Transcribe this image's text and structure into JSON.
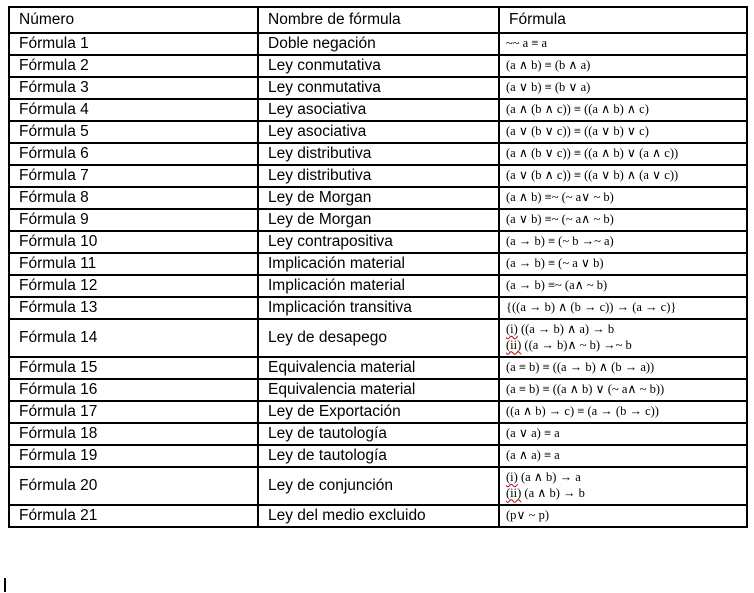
{
  "colors": {
    "background": "#ffffff",
    "border": "#000000",
    "text": "#000000",
    "spellcheck_underline": "#c00000"
  },
  "table": {
    "headers": [
      "Número",
      "Nombre de fórmula",
      "Fórmula"
    ],
    "rows": [
      {
        "numero": "Fórmula 1",
        "nombre": "Doble negación",
        "lines": [
          {
            "text": "~~ a ≡ a"
          }
        ]
      },
      {
        "numero": "Fórmula 2",
        "nombre": "Ley conmutativa",
        "lines": [
          {
            "text": "(a ∧ b) ≡ (b ∧ a)"
          }
        ]
      },
      {
        "numero": "Fórmula 3",
        "nombre": "Ley conmutativa",
        "lines": [
          {
            "text": "(a ∨ b) ≡ (b ∨ a)"
          }
        ]
      },
      {
        "numero": "Fórmula 4",
        "nombre": "Ley asociativa",
        "lines": [
          {
            "text": "(a ∧ (b ∧ c)) ≡ ((a ∧ b) ∧ c)"
          }
        ]
      },
      {
        "numero": "Fórmula 5",
        "nombre": "Ley asociativa",
        "lines": [
          {
            "text": "(a ∨ (b ∨ c)) ≡ ((a ∨ b) ∨ c)"
          }
        ]
      },
      {
        "numero": "Fórmula 6",
        "nombre": "Ley distributiva",
        "lines": [
          {
            "text": "(a ∧ (b ∨ c)) ≡ ((a ∧ b) ∨ (a ∧ c))"
          }
        ]
      },
      {
        "numero": "Fórmula 7",
        "nombre": "Ley distributiva",
        "lines": [
          {
            "text": "(a ∨ (b ∧ c)) ≡ ((a ∨ b) ∧ (a ∨ c))"
          }
        ]
      },
      {
        "numero": "Fórmula 8",
        "nombre": "Ley de Morgan",
        "lines": [
          {
            "text": "(a ∧ b) ≡~ (~ a∨ ~ b)"
          }
        ]
      },
      {
        "numero": "Fórmula 9",
        "nombre": "Ley de Morgan",
        "lines": [
          {
            "text": "(a ∨ b) ≡~ (~ a∧ ~ b)"
          }
        ]
      },
      {
        "numero": "Fórmula 10",
        "nombre": "Ley contrapositiva",
        "lines": [
          {
            "text": "(a → b) ≡ (~ b →~ a)"
          }
        ]
      },
      {
        "numero": "Fórmula 11",
        "nombre": "Implicación material",
        "lines": [
          {
            "text": "(a → b) ≡ (~ a ∨ b)"
          }
        ]
      },
      {
        "numero": "Fórmula 12",
        "nombre": "Implicación material",
        "lines": [
          {
            "text": "(a → b) ≡~ (a∧ ~ b)"
          }
        ]
      },
      {
        "numero": "Fórmula 13",
        "nombre": "Implicación transitiva",
        "lines": [
          {
            "text": "{((a → b) ∧ (b → c)) → (a → c)}"
          }
        ]
      },
      {
        "numero": "Fórmula 14",
        "nombre": "Ley de desapego",
        "lines": [
          {
            "marker": "(i)",
            "text": "((a → b) ∧ a) → b"
          },
          {
            "marker": "(ii)",
            "text": "((a → b)∧ ~ b) →~ b"
          }
        ]
      },
      {
        "numero": "Fórmula 15",
        "nombre": "Equivalencia material",
        "lines": [
          {
            "text": "(a ≡ b) ≡ ((a → b) ∧ (b → a))"
          }
        ]
      },
      {
        "numero": "Fórmula 16",
        "nombre": "Equivalencia material",
        "lines": [
          {
            "text": "(a ≡ b) ≡ ((a ∧ b) ∨ (~ a∧ ~ b))"
          }
        ]
      },
      {
        "numero": "Fórmula 17",
        "nombre": "Ley de Exportación",
        "lines": [
          {
            "text": "((a ∧ b) → c) ≡ (a → (b → c))"
          }
        ]
      },
      {
        "numero": "Fórmula 18",
        "nombre": "Ley de tautología",
        "lines": [
          {
            "text": "(a ∨ a) ≡ a"
          }
        ]
      },
      {
        "numero": "Fórmula 19",
        "nombre": "Ley de tautología",
        "lines": [
          {
            "text": "(a ∧ a) ≡ a"
          }
        ]
      },
      {
        "numero": "Fórmula 20",
        "nombre": "Ley de conjunción",
        "lines": [
          {
            "marker": "(i)",
            "text": "(a ∧ b) → a"
          },
          {
            "marker": "(ii)",
            "text": "(a ∧ b) → b"
          }
        ]
      },
      {
        "numero": "Fórmula 21",
        "nombre": "Ley del medio excluido",
        "lines": [
          {
            "text": "(p∨ ~ p)"
          }
        ]
      }
    ]
  }
}
